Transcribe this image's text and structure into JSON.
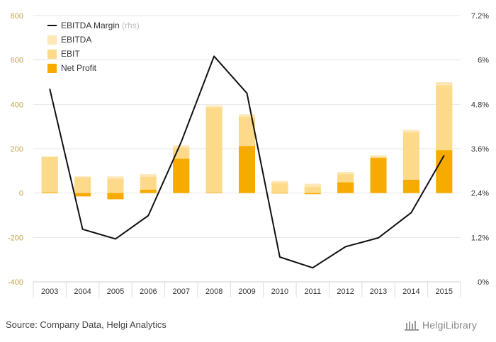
{
  "chart_data": {
    "type": "bar",
    "categories": [
      "2003",
      "2004",
      "2005",
      "2006",
      "2007",
      "2008",
      "2009",
      "2010",
      "2011",
      "2012",
      "2013",
      "2014",
      "2015"
    ],
    "series": [
      {
        "name": "EBITDA",
        "kind": "bar",
        "color": "#fde7b6",
        "values": [
          165,
          75,
          75,
          85,
          215,
          395,
          355,
          55,
          42,
          95,
          170,
          285,
          500
        ]
      },
      {
        "name": "EBIT",
        "kind": "bar",
        "color": "#fdd98a",
        "values": [
          163,
          70,
          63,
          73,
          205,
          385,
          343,
          45,
          28,
          85,
          163,
          273,
          485
        ]
      },
      {
        "name": "Net Profit",
        "kind": "bar",
        "color": "#f7ab00",
        "values": [
          3,
          -15,
          -28,
          15,
          155,
          2,
          212,
          0,
          -5,
          48,
          158,
          60,
          193
        ]
      },
      {
        "name": "EBITDA Margin",
        "note": "(rhs)",
        "kind": "line",
        "axis": "right",
        "color": "#111111",
        "values": [
          5.22,
          1.42,
          1.16,
          1.79,
          3.78,
          6.1,
          5.1,
          0.67,
          0.38,
          0.95,
          1.19,
          1.87,
          3.42
        ]
      }
    ],
    "y_left": {
      "min": -400,
      "max": 800,
      "ticks": [
        "-400",
        "-200",
        "0",
        "200",
        "400",
        "600",
        "800"
      ]
    },
    "y_right": {
      "min": 0,
      "max": 7.2,
      "ticks": [
        "0%",
        "1.2%",
        "2.4%",
        "3.6%",
        "4.8%",
        "6%",
        "7.2%"
      ]
    },
    "grid": true,
    "legend_position": "top-left"
  },
  "footer": {
    "source": "Source: Company Data, Helgi Analytics",
    "logo": "HelgiLibrary"
  }
}
